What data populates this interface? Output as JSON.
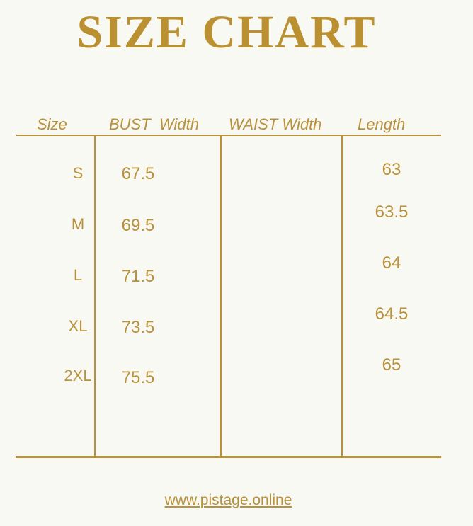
{
  "title": "SIZE CHART",
  "headers": [
    "Size",
    "BUST  Width",
    "WAIST Width",
    "Length"
  ],
  "rows": [
    {
      "size": "S",
      "bust": "67.5",
      "waist": "",
      "length": "63"
    },
    {
      "size": "M",
      "bust": "69.5",
      "waist": "",
      "length": "63.5"
    },
    {
      "size": "L",
      "bust": "71.5",
      "waist": "",
      "length": "64"
    },
    {
      "size": "XL",
      "bust": "73.5",
      "waist": "",
      "length": "64.5"
    },
    {
      "size": "2XL",
      "bust": "75.5",
      "waist": "",
      "length": "65"
    }
  ],
  "footer_link": "www.pistage.online",
  "colors": {
    "accent": "#b8913a",
    "background": "#f9f9f4"
  }
}
